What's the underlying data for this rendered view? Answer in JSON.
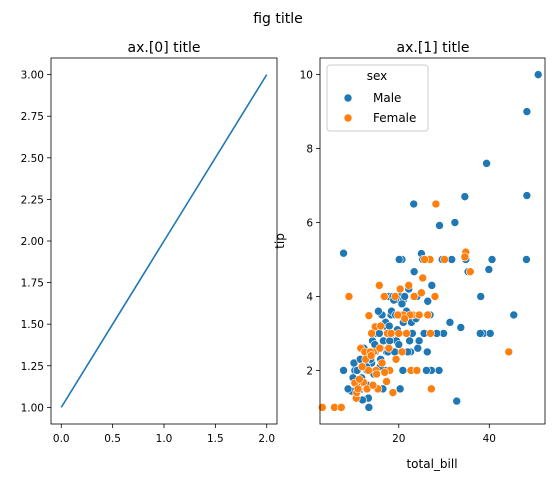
{
  "figure": {
    "title": "fig title"
  },
  "chart_data": [
    {
      "type": "line",
      "title": "ax.[0] title",
      "xlabel": "",
      "ylabel": "",
      "xlim": [
        -0.1,
        2.1
      ],
      "ylim": [
        0.9,
        3.1
      ],
      "xticks": [
        0.0,
        0.5,
        1.0,
        1.5,
        2.0
      ],
      "xtick_labels": [
        "0.0",
        "0.5",
        "1.0",
        "1.5",
        "2.0"
      ],
      "yticks": [
        1.0,
        1.25,
        1.5,
        1.75,
        2.0,
        2.25,
        2.5,
        2.75,
        3.0
      ],
      "ytick_labels": [
        "1.00",
        "1.25",
        "1.50",
        "1.75",
        "2.00",
        "2.25",
        "2.50",
        "2.75",
        "3.00"
      ],
      "grid": false,
      "series": [
        {
          "x": [
            0,
            1,
            2
          ],
          "y": [
            1,
            2,
            3
          ],
          "color": "#1f77b4"
        }
      ]
    },
    {
      "type": "scatter",
      "title": "ax.[1] title",
      "xlabel": "total_bill",
      "ylabel": "tip",
      "xlim": [
        2.6,
        52.3
      ],
      "ylim": [
        0.55,
        10.45
      ],
      "xticks": [
        20,
        40
      ],
      "xtick_labels": [
        "20",
        "40"
      ],
      "yticks": [
        2,
        4,
        6,
        8,
        10
      ],
      "ytick_labels": [
        "2",
        "4",
        "6",
        "8",
        "10"
      ],
      "grid": false,
      "legend": {
        "title": "sex",
        "placement": "top-left"
      },
      "series": [
        {
          "name": "Male",
          "color": "#1f77b4",
          "points": [
            [
              50.8,
              10.0
            ],
            [
              48.3,
              9.0
            ],
            [
              39.4,
              7.6
            ],
            [
              48.3,
              6.73
            ],
            [
              34.6,
              6.7
            ],
            [
              23.3,
              6.5
            ],
            [
              32.4,
              6.0
            ],
            [
              29.0,
              5.92
            ],
            [
              7.8,
              5.17
            ],
            [
              25.0,
              5.16
            ],
            [
              25.3,
              5.0
            ],
            [
              20.7,
              5.0
            ],
            [
              20.1,
              5.0
            ],
            [
              30.2,
              5.0
            ],
            [
              31.7,
              5.0
            ],
            [
              40.6,
              5.0
            ],
            [
              48.2,
              5.0
            ],
            [
              34.8,
              5.0
            ],
            [
              39.9,
              4.73
            ],
            [
              23.4,
              4.67
            ],
            [
              35.3,
              4.67
            ],
            [
              38.1,
              4.0
            ],
            [
              20.3,
              4.0
            ],
            [
              24.0,
              4.0
            ],
            [
              17.8,
              4.0
            ],
            [
              19.8,
              3.92
            ],
            [
              26.4,
              3.87
            ],
            [
              26.9,
              3.5
            ],
            [
              45.4,
              3.5
            ],
            [
              16.3,
              3.5
            ],
            [
              18.3,
              3.5
            ],
            [
              20.2,
              3.5
            ],
            [
              20.5,
              3.5
            ],
            [
              21.5,
              3.5
            ],
            [
              24.6,
              3.5
            ],
            [
              21.0,
              3.3
            ],
            [
              22.8,
              3.3
            ],
            [
              31.3,
              3.3
            ],
            [
              16.8,
              3.2
            ],
            [
              33.7,
              3.16
            ],
            [
              19.0,
              3.0
            ],
            [
              18.5,
              3.0
            ],
            [
              15.1,
              3.0
            ],
            [
              25.6,
              3.0
            ],
            [
              38.7,
              3.0
            ],
            [
              40.2,
              3.0
            ],
            [
              38.0,
              3.0
            ],
            [
              29.9,
              3.0
            ],
            [
              22.6,
              2.5
            ],
            [
              14.8,
              2.5
            ],
            [
              17.3,
              2.5
            ],
            [
              12.5,
              2.5
            ],
            [
              26.3,
              2.5
            ],
            [
              17.6,
              2.5
            ],
            [
              13.0,
              2.0
            ],
            [
              15.0,
              2.0
            ],
            [
              16.9,
              2.0
            ],
            [
              20.9,
              2.0
            ],
            [
              28.9,
              2.0
            ],
            [
              27.2,
              2.0
            ],
            [
              13.4,
              2.0
            ],
            [
              10.3,
              2.0
            ],
            [
              10.8,
              2.0
            ],
            [
              9.6,
              1.44
            ],
            [
              12.0,
              1.5
            ],
            [
              12.7,
              1.5
            ],
            [
              16.5,
              1.5
            ],
            [
              20.3,
              1.5
            ],
            [
              13.3,
              1.25
            ],
            [
              8.8,
              1.5
            ],
            [
              13.4,
              1.0
            ],
            [
              32.8,
              1.17
            ],
            [
              7.8,
              2.0
            ],
            [
              17.5,
              2.8
            ],
            [
              14.0,
              2.2
            ],
            [
              18.2,
              2.9
            ],
            [
              22.4,
              2.8
            ],
            [
              24.5,
              2.8
            ],
            [
              15.7,
              3.0
            ],
            [
              19.7,
              3.1
            ],
            [
              21.7,
              3.6
            ],
            [
              18.4,
              3.6
            ],
            [
              15.4,
              2.6
            ],
            [
              11.2,
              1.7
            ],
            [
              11.8,
              1.8
            ],
            [
              13.8,
              2.3
            ],
            [
              16.0,
              2.6
            ],
            [
              19.1,
              2.5
            ],
            [
              28.4,
              3.0
            ],
            [
              21.0,
              3.9
            ],
            [
              22.2,
              4.2
            ],
            [
              13.7,
              1.6
            ],
            [
              12.0,
              1.2
            ],
            [
              10.1,
              2.2
            ],
            [
              14.5,
              1.9
            ],
            [
              17.1,
              3.3
            ],
            [
              19.5,
              2.8
            ],
            [
              27.3,
              4.3
            ],
            [
              15.5,
              3.6
            ],
            [
              18.7,
              4.0
            ],
            [
              23.8,
              3.4
            ],
            [
              16.6,
              2.8
            ],
            [
              12.9,
              2.1
            ],
            [
              24.2,
              2.6
            ],
            [
              20.0,
              2.7
            ],
            [
              17.2,
              2.0
            ],
            [
              11.5,
              2.3
            ],
            [
              15.9,
              2.1
            ],
            [
              18.9,
              3.9
            ],
            [
              29.6,
              5.0
            ],
            [
              22.0,
              2.5
            ],
            [
              25.9,
              5.0
            ],
            [
              14.2,
              2.8
            ],
            [
              9.9,
              1.8
            ],
            [
              16.0,
              2.3
            ],
            [
              19.3,
              3.5
            ],
            [
              21.3,
              4.0
            ],
            [
              13.0,
              1.6
            ],
            [
              17.9,
              3.2
            ],
            [
              23.0,
              3.0
            ],
            [
              26.1,
              2.0
            ],
            [
              12.3,
              2.6
            ],
            [
              14.7,
              2.7
            ],
            [
              18.0,
              2.8
            ],
            [
              20.7,
              3.8
            ]
          ]
        },
        {
          "name": "Female",
          "color": "#ff7f0e",
          "points": [
            [
              3.1,
              1.0
            ],
            [
              5.8,
              1.0
            ],
            [
              7.3,
              1.0
            ],
            [
              9.0,
              4.0
            ],
            [
              10.3,
              1.66
            ],
            [
              10.6,
              1.25
            ],
            [
              27.2,
              1.5
            ],
            [
              44.3,
              2.5
            ],
            [
              28.2,
              6.5
            ],
            [
              34.8,
              5.2
            ],
            [
              30.1,
              5.0
            ],
            [
              26.9,
              5.0
            ],
            [
              25.7,
              5.0
            ],
            [
              35.8,
              4.67
            ],
            [
              34.6,
              5.07
            ],
            [
              22.2,
              4.3
            ],
            [
              15.7,
              4.3
            ],
            [
              16.8,
              4.0
            ],
            [
              20.3,
              4.2
            ],
            [
              21.0,
              3.5
            ],
            [
              18.4,
              3.0
            ],
            [
              11.6,
              2.6
            ],
            [
              12.8,
              1.5
            ],
            [
              17.5,
              3.0
            ],
            [
              14.8,
              3.18
            ],
            [
              13.3,
              2.0
            ],
            [
              12.2,
              1.68
            ],
            [
              13.0,
              1.5
            ],
            [
              15.4,
              1.5
            ],
            [
              18.0,
              2.0
            ],
            [
              19.8,
              3.5
            ],
            [
              23.1,
              3.5
            ],
            [
              22.5,
              3.5
            ],
            [
              20.7,
              2.5
            ],
            [
              26.4,
              3.5
            ],
            [
              13.4,
              3.48
            ],
            [
              15.0,
              2.0
            ],
            [
              16.9,
              1.95
            ],
            [
              14.5,
              2.5
            ],
            [
              25.3,
              4.5
            ],
            [
              27.0,
              3.0
            ],
            [
              24.5,
              3.5
            ],
            [
              16.3,
              2.2
            ],
            [
              12.5,
              2.5
            ],
            [
              11.3,
              1.76
            ],
            [
              17.8,
              2.6
            ],
            [
              13.7,
              2.5
            ],
            [
              18.3,
              3.0
            ],
            [
              15.1,
              1.9
            ],
            [
              10.7,
              1.4
            ],
            [
              14.0,
              3.0
            ],
            [
              19.2,
              4.0
            ],
            [
              21.7,
              3.0
            ],
            [
              20.0,
              3.0
            ],
            [
              22.7,
              2.0
            ],
            [
              18.7,
              1.4
            ],
            [
              16.0,
              3.2
            ],
            [
              24.0,
              2.0
            ],
            [
              23.4,
              4.0
            ],
            [
              28.0,
              4.0
            ],
            [
              12.7,
              2.3
            ],
            [
              14.3,
              1.6
            ],
            [
              11.9,
              2.1
            ],
            [
              13.9,
              2.4
            ],
            [
              15.8,
              2.6
            ],
            [
              17.3,
              1.7
            ],
            [
              19.4,
              2.3
            ],
            [
              21.3,
              3.4
            ],
            [
              25.0,
              4.1
            ],
            [
              11.0,
              1.5
            ]
          ]
        }
      ]
    }
  ]
}
